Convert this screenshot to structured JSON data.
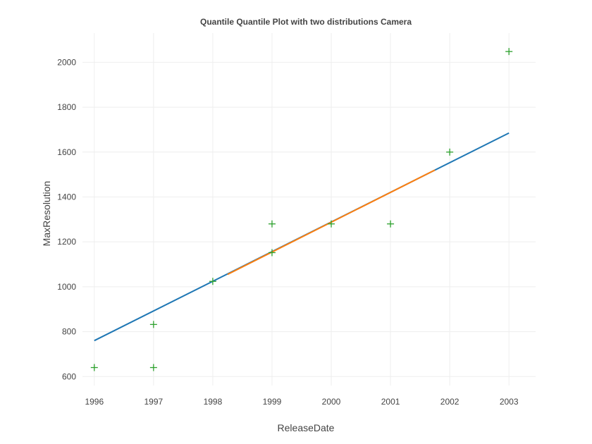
{
  "chart_data": {
    "type": "scatter",
    "title": "Quantile Quantile Plot with two distributions Camera",
    "xlabel": "ReleaseDate",
    "ylabel": "MaxResolution",
    "xlim": [
      1995.8,
      2003.45
    ],
    "ylim": [
      560,
      2130
    ],
    "x_ticks": [
      1996,
      1997,
      1998,
      1999,
      2000,
      2001,
      2002,
      2003
    ],
    "y_ticks": [
      600,
      800,
      1000,
      1200,
      1400,
      1600,
      1800,
      2000
    ],
    "grid": true,
    "points": [
      {
        "x": 1996,
        "y": 640
      },
      {
        "x": 1997,
        "y": 640
      },
      {
        "x": 1997,
        "y": 832
      },
      {
        "x": 1998,
        "y": 1024
      },
      {
        "x": 1999,
        "y": 1152
      },
      {
        "x": 1999,
        "y": 1280
      },
      {
        "x": 2000,
        "y": 1280
      },
      {
        "x": 2001,
        "y": 1280
      },
      {
        "x": 2002,
        "y": 1600
      },
      {
        "x": 2003,
        "y": 2048
      }
    ],
    "lines": [
      {
        "x": [
          1996,
          2003
        ],
        "y": [
          760,
          1685
        ],
        "color": "#1f77b4"
      },
      {
        "x": [
          1998.25,
          2001.75
        ],
        "y": [
          1055,
          1520
        ],
        "color": "#ff7f0e"
      }
    ],
    "point_color": "#2ca02c"
  }
}
